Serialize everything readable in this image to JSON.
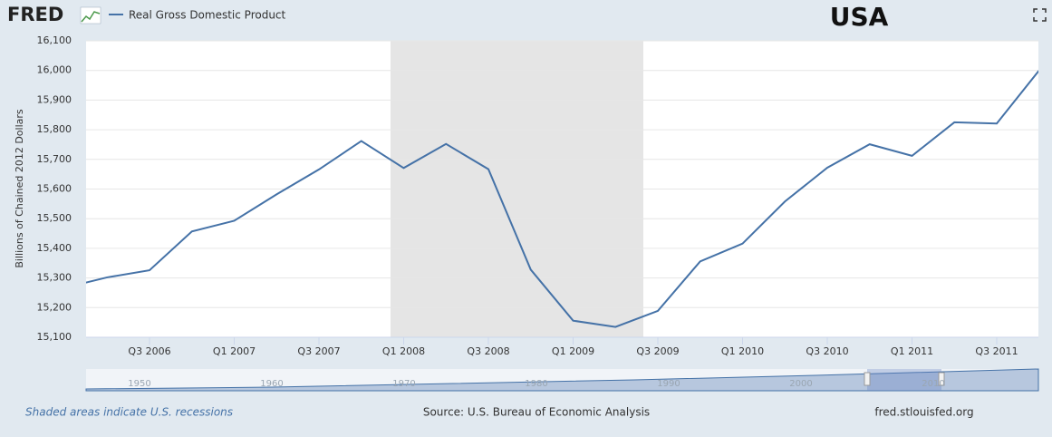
{
  "header": {
    "logo": "FRED",
    "badge": "USA"
  },
  "chart_data": {
    "type": "line",
    "ylabel": "Billions of Chained 2012 Dollars",
    "categories": [
      null,
      null,
      "Q3 2006",
      null,
      "Q1 2007",
      null,
      "Q3 2007",
      null,
      "Q1 2008",
      null,
      "Q3 2008",
      null,
      "Q1 2009",
      null,
      "Q3 2009",
      null,
      "Q1 2010",
      null,
      "Q3 2010",
      null,
      "Q1 2011",
      null,
      "Q3 2011",
      null
    ],
    "series": [
      {
        "name": "Real Gross Domestic Product",
        "color": "#4572a7",
        "values": [
          15267,
          15302,
          15326,
          15457,
          15493,
          15582,
          15666,
          15762,
          15671,
          15752,
          15667,
          15328,
          15156,
          15135,
          15189,
          15356,
          15416,
          15558,
          15672,
          15751,
          15712,
          15825,
          15821,
          16000
        ]
      }
    ],
    "ylim": [
      15100,
      16100
    ],
    "yticks": [
      {
        "value": 15100,
        "label": "15,100"
      },
      {
        "value": 15200,
        "label": "15,200"
      },
      {
        "value": 15300,
        "label": "15,300"
      },
      {
        "value": 15400,
        "label": "15,400"
      },
      {
        "value": 15500,
        "label": "15,500"
      },
      {
        "value": 15600,
        "label": "15,600"
      },
      {
        "value": 15700,
        "label": "15,700"
      },
      {
        "value": 15800,
        "label": "15,800"
      },
      {
        "value": 15900,
        "label": "15,900"
      },
      {
        "value": 16000,
        "label": "16,000"
      },
      {
        "value": 16100,
        "label": "16,100"
      }
    ],
    "grid": true
  },
  "navigator": {
    "labels": [
      "1950",
      "1960",
      "1970",
      "1980",
      "1990",
      "2000",
      "2010"
    ]
  },
  "footer": {
    "note": "Shaded areas indicate U.S. recessions",
    "source": "Source: U.S. Bureau of Economic Analysis",
    "site": "fred.stlouisfed.org"
  }
}
